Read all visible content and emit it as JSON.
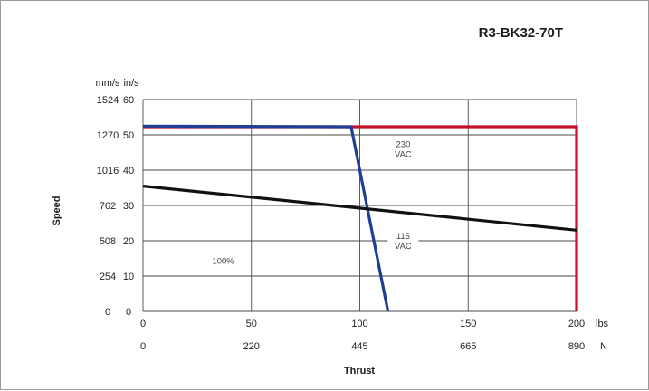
{
  "chart_data": {
    "type": "line",
    "title": "R3-BK32-70T",
    "ylabel": "Speed",
    "xlabel": "Thrust",
    "units": {
      "y_left_outer": "mm/s",
      "y_left_inner": "in/s",
      "x_primary": "lbs",
      "x_secondary": "N"
    },
    "xlim": [
      0,
      200
    ],
    "ylim": [
      0,
      60
    ],
    "x_ticks_lbs": [
      "0",
      "50",
      "100",
      "150",
      "200"
    ],
    "x_ticks_n": [
      "0",
      "220",
      "445",
      "665",
      "890"
    ],
    "y_ticks_ins": [
      "0",
      "10",
      "20",
      "30",
      "40",
      "50",
      "60"
    ],
    "y_ticks_mms": [
      "0",
      "254",
      "508",
      "762",
      "1016",
      "1270",
      "1524"
    ],
    "grid": true,
    "series": [
      {
        "name": "230 VAC",
        "color": "#c8102e",
        "x": [
          0,
          200,
          200
        ],
        "y": [
          52.3,
          52.3,
          0
        ]
      },
      {
        "name": "115 VAC",
        "color": "#1f3f96",
        "x": [
          0,
          96,
          113
        ],
        "y": [
          52.5,
          52.3,
          0
        ]
      },
      {
        "name": "100%",
        "color": "#111111",
        "x": [
          0,
          200
        ],
        "y": [
          35.5,
          23
        ]
      }
    ],
    "annotations": [
      {
        "lines": [
          "230",
          "VAC"
        ],
        "x": 120,
        "y": 46.5
      },
      {
        "lines": [
          "115",
          "VAC"
        ],
        "x": 120,
        "y": 20.5
      },
      {
        "lines": [
          "100%"
        ],
        "x": 37,
        "y": 13.5
      }
    ]
  }
}
